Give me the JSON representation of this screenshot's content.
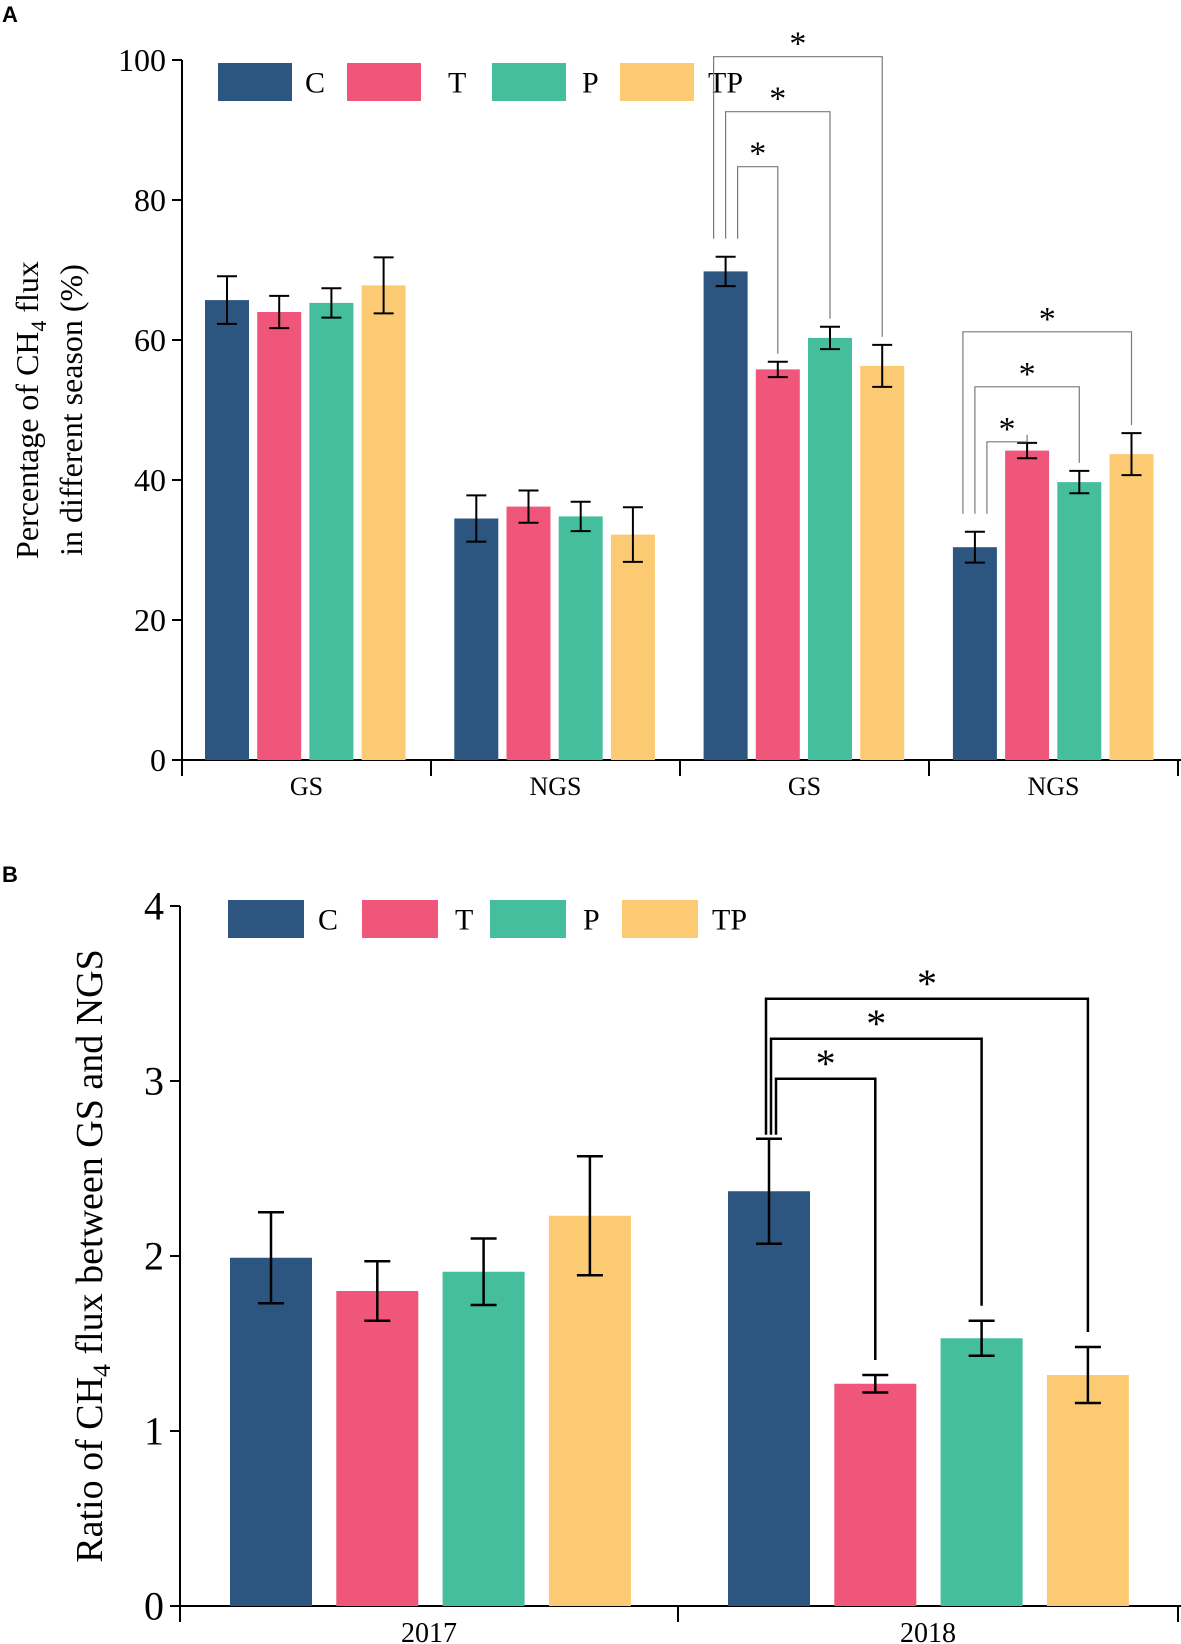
{
  "colors": {
    "C": "#2c5580",
    "T": "#f0557a",
    "P": "#45be9d",
    "TP": "#fdca74"
  },
  "chart_data": [
    {
      "panel_label": "A",
      "type": "bar",
      "ylabel_line1": "Percentage of CH",
      "ylabel_sub": "4",
      "ylabel_line1_suffix": " flux",
      "ylabel_line2": "in different season (%)",
      "ylim": [
        0,
        100
      ],
      "yticks": [
        "0",
        "20",
        "40",
        "60",
        "80",
        "100"
      ],
      "categories": [
        "GS",
        "NGS",
        "GS",
        "NGS"
      ],
      "legend": [
        "C",
        "T",
        "P",
        "TP"
      ],
      "series": [
        {
          "name": "C",
          "values": [
            65.7,
            34.5,
            69.8,
            30.4
          ],
          "errors": [
            3.4,
            3.3,
            2.1,
            2.2
          ]
        },
        {
          "name": "T",
          "values": [
            64.0,
            36.2,
            55.8,
            44.2
          ],
          "errors": [
            2.3,
            2.3,
            1.1,
            1.1
          ]
        },
        {
          "name": "P",
          "values": [
            65.3,
            34.8,
            60.3,
            39.7
          ],
          "errors": [
            2.1,
            2.1,
            1.6,
            1.6
          ]
        },
        {
          "name": "TP",
          "values": [
            67.8,
            32.2,
            56.3,
            43.7
          ],
          "errors": [
            4.0,
            3.9,
            3.0,
            3.0
          ]
        }
      ],
      "significance": [
        {
          "category": 2,
          "from": "C",
          "to": "T",
          "label": "*"
        },
        {
          "category": 2,
          "from": "C",
          "to": "P",
          "label": "*"
        },
        {
          "category": 2,
          "from": "C",
          "to": "TP",
          "label": "*"
        },
        {
          "category": 3,
          "from": "C",
          "to": "T",
          "label": "*"
        },
        {
          "category": 3,
          "from": "C",
          "to": "P",
          "label": "*"
        },
        {
          "category": 3,
          "from": "C",
          "to": "TP",
          "label": "*"
        }
      ]
    },
    {
      "panel_label": "B",
      "type": "bar",
      "ylabel_line1": "Ratio of CH",
      "ylabel_sub": "4",
      "ylabel_line1_suffix": " flux between GS and NGS",
      "ylim": [
        0,
        4
      ],
      "yticks": [
        "0",
        "1",
        "2",
        "3",
        "4"
      ],
      "categories": [
        "2017",
        "2018"
      ],
      "legend": [
        "C",
        "T",
        "P",
        "TP"
      ],
      "series": [
        {
          "name": "C",
          "values": [
            1.99,
            2.37
          ],
          "errors": [
            0.26,
            0.3
          ]
        },
        {
          "name": "T",
          "values": [
            1.8,
            1.27
          ],
          "errors": [
            0.17,
            0.05
          ]
        },
        {
          "name": "P",
          "values": [
            1.91,
            1.53
          ],
          "errors": [
            0.19,
            0.1
          ]
        },
        {
          "name": "TP",
          "values": [
            2.23,
            1.32
          ],
          "errors": [
            0.34,
            0.16
          ]
        }
      ],
      "significance": [
        {
          "category": 1,
          "from": "C",
          "to": "T",
          "label": "*"
        },
        {
          "category": 1,
          "from": "C",
          "to": "P",
          "label": "*"
        },
        {
          "category": 1,
          "from": "C",
          "to": "TP",
          "label": "*"
        }
      ]
    }
  ]
}
